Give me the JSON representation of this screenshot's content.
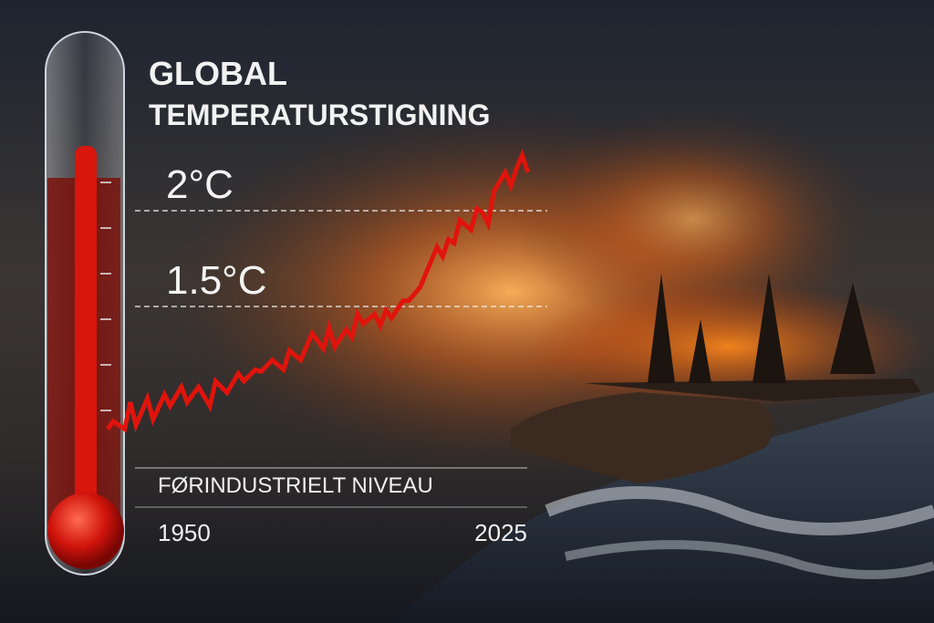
{
  "chart_data": {
    "type": "line",
    "title": [
      "GLOBAL",
      "TEMPERATURSTIGNING"
    ],
    "baseline_label": "FØRINDUSTRIELT NIVEAU",
    "x": [
      1950,
      1951,
      1953,
      1954,
      1955,
      1957,
      1958,
      1960,
      1961,
      1963,
      1964,
      1966,
      1968,
      1969,
      1971,
      1973,
      1974,
      1976,
      1977,
      1979,
      1981,
      1982,
      1984,
      1986,
      1988,
      1989,
      1990,
      1992,
      1993,
      1994,
      1995,
      1997,
      1998,
      1999,
      2000,
      2002,
      2003,
      2005,
      2006,
      2008,
      2009,
      2010,
      2011,
      2012,
      2014,
      2015,
      2016,
      2017,
      2018,
      2020,
      2021,
      2022,
      2023,
      2024
    ],
    "series": [
      {
        "color": "#e0140c",
        "values": [
          0.86,
          0.9,
          0.86,
          1.0,
          0.88,
          1.02,
          0.91,
          1.04,
          0.98,
          1.08,
          1.0,
          1.08,
          0.98,
          1.11,
          1.05,
          1.15,
          1.11,
          1.17,
          1.16,
          1.22,
          1.17,
          1.27,
          1.22,
          1.36,
          1.28,
          1.39,
          1.29,
          1.38,
          1.34,
          1.46,
          1.41,
          1.46,
          1.4,
          1.48,
          1.44,
          1.53,
          1.53,
          1.6,
          1.67,
          1.81,
          1.76,
          1.85,
          1.83,
          1.95,
          1.9,
          2.01,
          1.99,
          1.93,
          2.1,
          2.2,
          2.13,
          2.22,
          2.29,
          2.2
        ]
      }
    ],
    "xlim": [
      1950,
      2025
    ],
    "xticks": [
      1950,
      2025
    ],
    "ylim": [
      0.5,
      2.5
    ],
    "yticks": [
      {
        "value": 1.5,
        "label": "1.5°C"
      },
      {
        "value": 2,
        "label": "2°C"
      }
    ],
    "grid": true
  }
}
